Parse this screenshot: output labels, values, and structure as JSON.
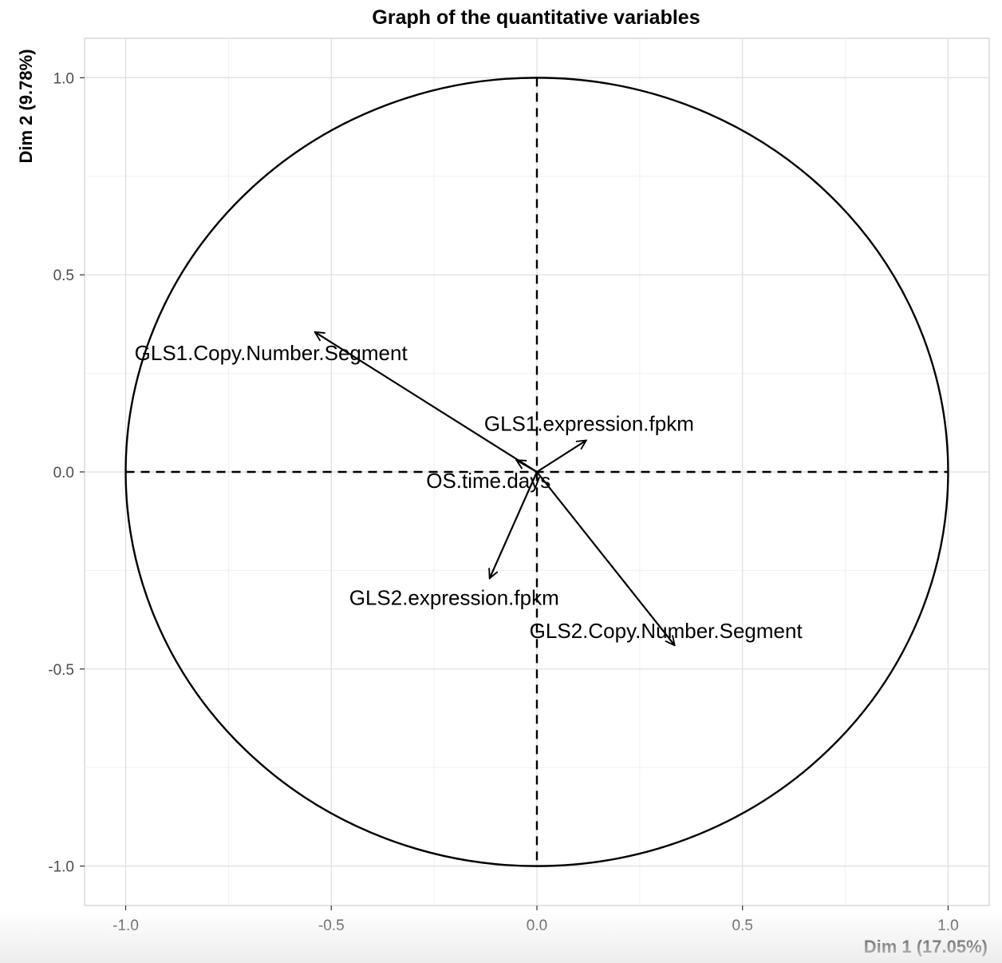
{
  "chart_data": {
    "type": "scatter",
    "title": "Graph of the quantitative variables",
    "xlabel": "Dim 1 (17.05%)",
    "ylabel": "Dim 2 (9.78%)",
    "xlim": [
      -1.1,
      1.1
    ],
    "ylim": [
      -1.1,
      1.1
    ],
    "x_ticks": [
      {
        "value": -1.0,
        "label": "-1.0"
      },
      {
        "value": -0.5,
        "label": "-0.5"
      },
      {
        "value": 0.0,
        "label": "0.0"
      },
      {
        "value": 0.5,
        "label": "0.5"
      },
      {
        "value": 1.0,
        "label": "1.0"
      }
    ],
    "y_ticks": [
      {
        "value": 1.0,
        "label": "1.0"
      },
      {
        "value": 0.5,
        "label": "0.5"
      },
      {
        "value": 0.0,
        "label": "0.0"
      },
      {
        "value": -0.5,
        "label": "-0.5"
      },
      {
        "value": -1.0,
        "label": "-1.0"
      }
    ],
    "grid": true,
    "unit_circle": true,
    "variables": [
      {
        "name": "GLS1.Copy.Number.Segment",
        "x": -0.54,
        "y": 0.355
      },
      {
        "name": "GLS1.expression.fpkm",
        "x": 0.12,
        "y": 0.08
      },
      {
        "name": "OS.time.days",
        "x": -0.05,
        "y": 0.03
      },
      {
        "name": "GLS2.expression.fpkm",
        "x": -0.115,
        "y": -0.27
      },
      {
        "name": "GLS2.Copy.Number.Segment",
        "x": 0.335,
        "y": -0.44
      }
    ]
  }
}
